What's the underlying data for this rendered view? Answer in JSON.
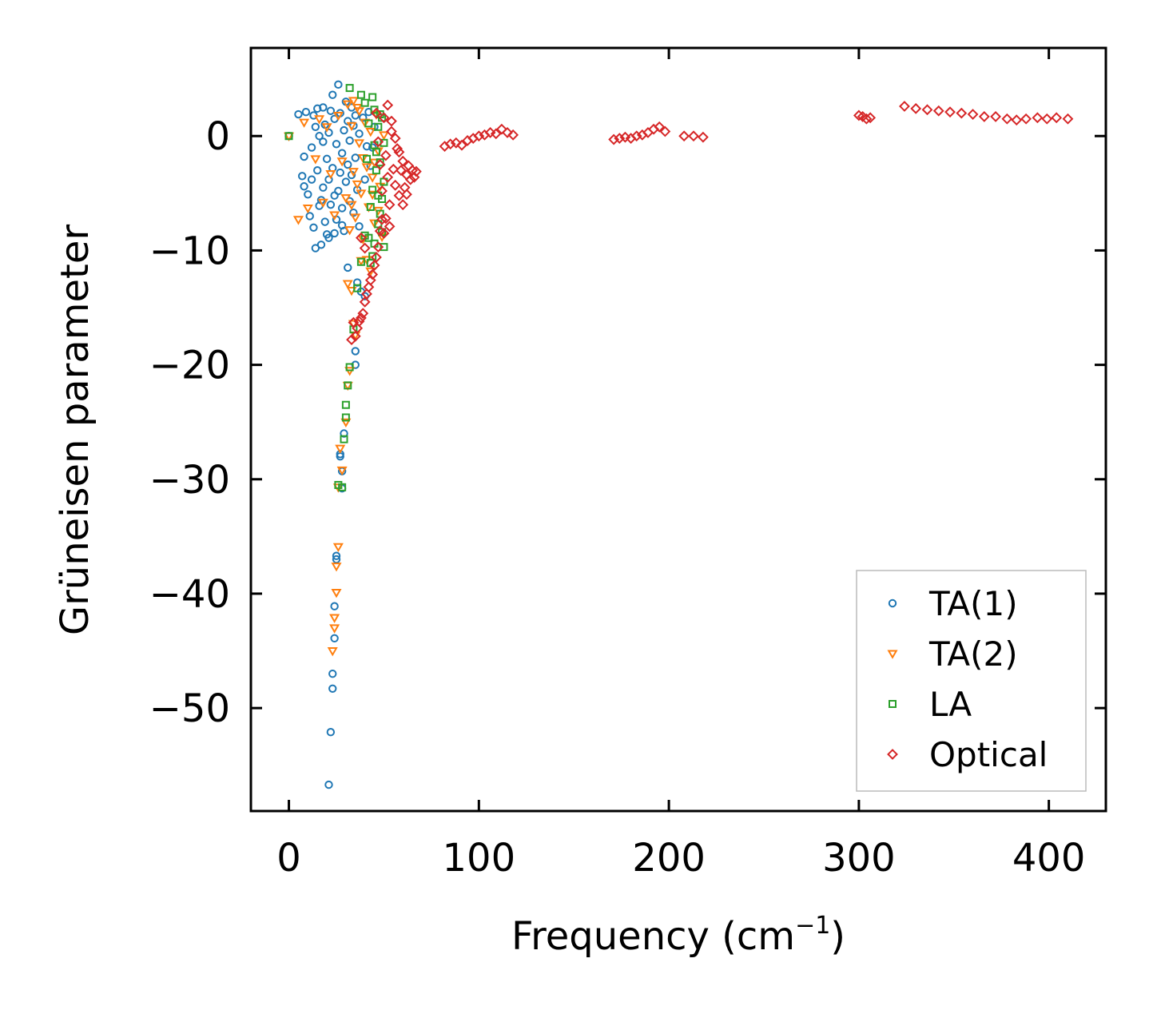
{
  "chart_data": {
    "type": "scatter",
    "title": "",
    "xlabel_main": "Frequency (cm",
    "xlabel_sup": "−1",
    "xlabel_end": ")",
    "ylabel": "Grüneisen parameter",
    "xlim": [
      -20,
      430
    ],
    "ylim": [
      -59,
      7.7
    ],
    "xticks": [
      0,
      100,
      200,
      300,
      400
    ],
    "xtick_labels": [
      "0",
      "100",
      "200",
      "300",
      "400"
    ],
    "yticks": [
      0,
      -10,
      -20,
      -30,
      -40,
      -50
    ],
    "ytick_labels": [
      "0",
      "−10",
      "−20",
      "−30",
      "−40",
      "−50"
    ],
    "legend_position": "lower-right",
    "series": [
      {
        "name": "TA(1)",
        "marker": "circle",
        "color": "#1f77b4",
        "points": [
          [
            0,
            0
          ],
          [
            5,
            1.9
          ],
          [
            7,
            -3.5
          ],
          [
            8,
            -4.4
          ],
          [
            8,
            -1.8
          ],
          [
            9,
            2.1
          ],
          [
            10,
            -5.1
          ],
          [
            11,
            -7.0
          ],
          [
            12,
            -1.0
          ],
          [
            13,
            1.8
          ],
          [
            13,
            -8.0
          ],
          [
            14,
            -9.8
          ],
          [
            15,
            2.4
          ],
          [
            15,
            -3.0
          ],
          [
            16,
            0.0
          ],
          [
            16,
            -6.1
          ],
          [
            17,
            -9.5
          ],
          [
            18,
            2.5
          ],
          [
            18,
            -4.5
          ],
          [
            19,
            1.0
          ],
          [
            19,
            -7.5
          ],
          [
            20,
            -2.0
          ],
          [
            20,
            -8.6
          ],
          [
            21,
            -3.8
          ],
          [
            21,
            0.3
          ],
          [
            22,
            2.2
          ],
          [
            22,
            -6.0
          ],
          [
            23,
            3.6
          ],
          [
            23,
            -2.8
          ],
          [
            24,
            -5.2
          ],
          [
            24,
            1.5
          ],
          [
            25,
            -7.3
          ],
          [
            25,
            -0.7
          ],
          [
            26,
            4.5
          ],
          [
            26,
            -4.8
          ],
          [
            27,
            -3.2
          ],
          [
            27,
            2.0
          ],
          [
            28,
            -6.3
          ],
          [
            28,
            -1.5
          ],
          [
            29,
            0.5
          ],
          [
            29,
            -8.3
          ],
          [
            30,
            3.0
          ],
          [
            30,
            -4.0
          ],
          [
            31,
            -2.5
          ],
          [
            31,
            1.3
          ],
          [
            32,
            -5.7
          ],
          [
            32,
            -0.4
          ],
          [
            33,
            2.5
          ],
          [
            33,
            -3.4
          ],
          [
            34,
            -6.7
          ],
          [
            34,
            0.9
          ],
          [
            35,
            -1.9
          ],
          [
            35,
            1.8
          ],
          [
            36,
            -4.7
          ],
          [
            36,
            -12.8
          ],
          [
            37,
            0.2
          ],
          [
            37,
            -7.9
          ],
          [
            38,
            -13.6
          ],
          [
            39,
            1.6
          ],
          [
            40,
            -3.8
          ],
          [
            40,
            -14.0
          ],
          [
            41,
            -0.9
          ],
          [
            42,
            2.1
          ],
          [
            43,
            -2.6
          ],
          [
            44,
            -1.0
          ],
          [
            45,
            0.8
          ],
          [
            12,
            -3.8
          ],
          [
            17,
            -5.6
          ],
          [
            21,
            -8.9
          ],
          [
            24,
            -8.5
          ],
          [
            28,
            -7.8
          ],
          [
            14,
            0.8
          ],
          [
            18,
            -0.5
          ],
          [
            31,
            -11.5
          ],
          [
            35,
            -18.8
          ],
          [
            35,
            -20.0
          ],
          [
            29,
            -26.0
          ],
          [
            28,
            -29.3
          ],
          [
            28,
            -30.8
          ],
          [
            27,
            -28.0
          ],
          [
            27,
            -27.8
          ],
          [
            25,
            -36.7
          ],
          [
            25,
            -37.0
          ],
          [
            24,
            -41.1
          ],
          [
            24,
            -43.9
          ],
          [
            23,
            -47.0
          ],
          [
            23,
            -48.3
          ],
          [
            22,
            -52.1
          ],
          [
            21,
            -56.7
          ]
        ]
      },
      {
        "name": "TA(2)",
        "marker": "triangle-down",
        "color": "#ff7f0e",
        "points": [
          [
            0,
            0
          ],
          [
            5,
            -7.3
          ],
          [
            8,
            1.2
          ],
          [
            10,
            -6.3
          ],
          [
            14,
            -2.0
          ],
          [
            16,
            1.5
          ],
          [
            18,
            -5.8
          ],
          [
            20,
            0.8
          ],
          [
            22,
            -3.3
          ],
          [
            24,
            -6.9
          ],
          [
            26,
            1.8
          ],
          [
            28,
            -2.2
          ],
          [
            30,
            -5.4
          ],
          [
            31,
            2.8
          ],
          [
            32,
            -8.2
          ],
          [
            33,
            0.9
          ],
          [
            34,
            -3.1
          ],
          [
            35,
            -7.1
          ],
          [
            36,
            2.5
          ],
          [
            37,
            -0.6
          ],
          [
            38,
            -5.0
          ],
          [
            39,
            -9.0
          ],
          [
            40,
            1.2
          ],
          [
            41,
            -2.7
          ],
          [
            42,
            -6.2
          ],
          [
            43,
            0.4
          ],
          [
            44,
            -3.6
          ],
          [
            45,
            -7.6
          ],
          [
            46,
            1.9
          ],
          [
            47,
            -1.3
          ],
          [
            48,
            -4.4
          ],
          [
            49,
            -8.8
          ],
          [
            50,
            0.1
          ],
          [
            41,
            -10.8
          ],
          [
            38,
            -10.9
          ],
          [
            43,
            -11.8
          ],
          [
            31,
            -12.9
          ],
          [
            33,
            -13.5
          ],
          [
            34,
            -16.4
          ],
          [
            35,
            -17.4
          ],
          [
            32,
            -20.5
          ],
          [
            31,
            -21.8
          ],
          [
            30,
            -25.0
          ],
          [
            27,
            -27.3
          ],
          [
            28,
            -29.2
          ],
          [
            26,
            -30.7
          ],
          [
            26,
            -35.9
          ],
          [
            25,
            -37.6
          ],
          [
            25,
            -39.9
          ],
          [
            24,
            -42.1
          ],
          [
            24,
            -43.0
          ],
          [
            23,
            -45.0
          ],
          [
            34,
            3.1
          ],
          [
            37,
            2.2
          ],
          [
            44,
            -5.1
          ],
          [
            45,
            -2.3
          ],
          [
            47,
            -6.5
          ],
          [
            39,
            -1.9
          ],
          [
            36,
            -4.2
          ],
          [
            33,
            -6.0
          ]
        ]
      },
      {
        "name": "LA",
        "marker": "square",
        "color": "#2ca02c",
        "points": [
          [
            0,
            0
          ],
          [
            32,
            4.2
          ],
          [
            38,
            3.6
          ],
          [
            40,
            2.9
          ],
          [
            42,
            1.1
          ],
          [
            44,
            3.4
          ],
          [
            45,
            -0.8
          ],
          [
            46,
            -3.0
          ],
          [
            47,
            -5.2
          ],
          [
            47,
            0.8
          ],
          [
            48,
            -6.8
          ],
          [
            48,
            -2.3
          ],
          [
            49,
            -8.4
          ],
          [
            49,
            1.6
          ],
          [
            50,
            -9.7
          ],
          [
            50,
            -4.0
          ],
          [
            45,
            -9.4
          ],
          [
            44,
            -10.5
          ],
          [
            43,
            -11.1
          ],
          [
            42,
            -8.9
          ],
          [
            40,
            -8.7
          ],
          [
            38,
            -11.0
          ],
          [
            36,
            -13.3
          ],
          [
            34,
            -16.9
          ],
          [
            32,
            -20.2
          ],
          [
            31,
            -21.8
          ],
          [
            30,
            -23.5
          ],
          [
            30,
            -24.6
          ],
          [
            29,
            -26.5
          ],
          [
            28,
            -30.7
          ],
          [
            26,
            -30.5
          ],
          [
            41,
            -2.0
          ],
          [
            43,
            -6.2
          ],
          [
            46,
            -1.4
          ],
          [
            44,
            -4.7
          ],
          [
            48,
            1.9
          ],
          [
            50,
            -0.6
          ],
          [
            47,
            -7.7
          ],
          [
            49,
            -5.5
          ],
          [
            45,
            2.3
          ]
        ]
      },
      {
        "name": "Optical",
        "marker": "diamond",
        "color": "#d62728",
        "points": [
          [
            46,
            2.0
          ],
          [
            47,
            -0.5
          ],
          [
            48,
            -2.5
          ],
          [
            49,
            -4.8
          ],
          [
            50,
            1.6
          ],
          [
            51,
            -1.7
          ],
          [
            52,
            -3.6
          ],
          [
            53,
            -6.0
          ],
          [
            54,
            0.4
          ],
          [
            55,
            -2.9
          ],
          [
            56,
            -4.3
          ],
          [
            57,
            -1.1
          ],
          [
            58,
            -5.2
          ],
          [
            59,
            -3.0
          ],
          [
            60,
            -2.2
          ],
          [
            61,
            -4.5
          ],
          [
            62,
            -3.4
          ],
          [
            63,
            -2.6
          ],
          [
            64,
            -3.8
          ],
          [
            65,
            -3.0
          ],
          [
            66,
            -3.6
          ],
          [
            67,
            -3.1
          ],
          [
            52,
            2.7
          ],
          [
            54,
            1.3
          ],
          [
            56,
            -0.2
          ],
          [
            58,
            -1.4
          ],
          [
            60,
            -6.0
          ],
          [
            62,
            -5.1
          ],
          [
            49,
            -7.3
          ],
          [
            48,
            -8.3
          ],
          [
            47,
            -9.7
          ],
          [
            46,
            -10.6
          ],
          [
            45,
            -11.3
          ],
          [
            44,
            -12.1
          ],
          [
            43,
            -12.6
          ],
          [
            42,
            -13.2
          ],
          [
            41,
            -13.8
          ],
          [
            40,
            -14.5
          ],
          [
            39,
            -15.5
          ],
          [
            38,
            -15.9
          ],
          [
            37,
            -16.2
          ],
          [
            36,
            -16.8
          ],
          [
            35,
            -17.5
          ],
          [
            38,
            -8.9
          ],
          [
            40,
            -9.8
          ],
          [
            34,
            -16.3
          ],
          [
            33,
            -17.8
          ],
          [
            50,
            -8.5
          ],
          [
            51,
            -7.2
          ],
          [
            53,
            -7.9
          ],
          [
            82,
            -0.9
          ],
          [
            85,
            -0.7
          ],
          [
            88,
            -0.6
          ],
          [
            91,
            -0.8
          ],
          [
            94,
            -0.4
          ],
          [
            97,
            -0.2
          ],
          [
            100,
            0.0
          ],
          [
            103,
            0.1
          ],
          [
            106,
            0.3
          ],
          [
            109,
            0.2
          ],
          [
            112,
            0.6
          ],
          [
            115,
            0.3
          ],
          [
            118,
            0.1
          ],
          [
            171,
            -0.3
          ],
          [
            174,
            -0.2
          ],
          [
            177,
            -0.1
          ],
          [
            180,
            -0.2
          ],
          [
            183,
            0.0
          ],
          [
            186,
            0.1
          ],
          [
            189,
            0.3
          ],
          [
            192,
            0.6
          ],
          [
            195,
            0.8
          ],
          [
            198,
            0.4
          ],
          [
            208,
            0.0
          ],
          [
            213,
            0.0
          ],
          [
            218,
            -0.1
          ],
          [
            300,
            1.8
          ],
          [
            302,
            1.7
          ],
          [
            304,
            1.5
          ],
          [
            306,
            1.6
          ],
          [
            324,
            2.6
          ],
          [
            330,
            2.4
          ],
          [
            336,
            2.3
          ],
          [
            342,
            2.2
          ],
          [
            348,
            2.1
          ],
          [
            354,
            2.0
          ],
          [
            360,
            1.9
          ],
          [
            366,
            1.7
          ],
          [
            372,
            1.7
          ],
          [
            378,
            1.5
          ],
          [
            383,
            1.4
          ],
          [
            388,
            1.5
          ],
          [
            394,
            1.6
          ],
          [
            399,
            1.5
          ],
          [
            404,
            1.6
          ],
          [
            410,
            1.5
          ]
        ]
      }
    ]
  }
}
